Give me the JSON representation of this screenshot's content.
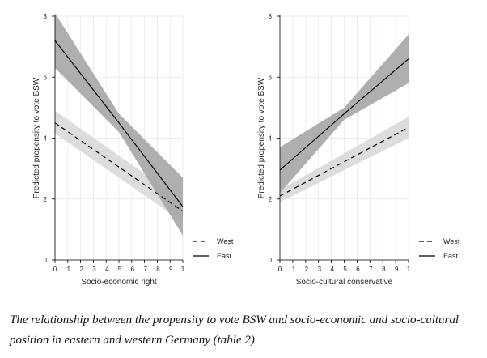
{
  "chart_data": [
    {
      "type": "line",
      "title": "",
      "xlabel": "Socio-economic right",
      "ylabel": "Predicted propensity to vote BSW",
      "xlim": [
        0,
        1
      ],
      "ylim": [
        0,
        8
      ],
      "x_ticks": [
        0,
        0.1,
        0.2,
        0.3,
        0.4,
        0.5,
        0.6,
        0.7,
        0.8,
        0.9,
        1
      ],
      "x_tick_labels": [
        "0",
        ".1",
        ".2",
        ".3",
        ".4",
        ".5",
        ".6",
        ".7",
        ".8",
        ".9",
        "1"
      ],
      "y_ticks": [
        0,
        2,
        4,
        6,
        8
      ],
      "y_tick_labels": [
        "0",
        "2",
        "4",
        "6",
        "8"
      ],
      "grid": true,
      "legend_position": "bottom-right",
      "series": [
        {
          "name": "West",
          "line_style": "dashed",
          "color": "#000000",
          "band_color": "#d9d9d9",
          "x": [
            0,
            1
          ],
          "values": [
            4.5,
            1.6
          ],
          "ci_lower": [
            4.15,
            1.25
          ],
          "ci_upper": [
            4.9,
            1.95
          ]
        },
        {
          "name": "East",
          "line_style": "solid",
          "color": "#000000",
          "band_color": "#a6a6a6",
          "x": [
            0,
            0.5,
            1
          ],
          "values": [
            7.2,
            4.5,
            1.75
          ],
          "ci_lower": [
            6.3,
            4.2,
            0.8
          ],
          "ci_upper": [
            8.1,
            4.8,
            2.7
          ]
        }
      ]
    },
    {
      "type": "line",
      "title": "",
      "xlabel": "Socio-cultural conservative",
      "ylabel": "Predicted propensity to vote BSW",
      "xlim": [
        0,
        1
      ],
      "ylim": [
        0,
        8
      ],
      "x_ticks": [
        0,
        0.1,
        0.2,
        0.3,
        0.4,
        0.5,
        0.6,
        0.7,
        0.8,
        0.9,
        1
      ],
      "x_tick_labels": [
        "0",
        ".1",
        ".2",
        ".3",
        ".4",
        ".5",
        ".6",
        ".7",
        ".8",
        ".9",
        "1"
      ],
      "y_ticks": [
        0,
        2,
        4,
        6,
        8
      ],
      "y_tick_labels": [
        "0",
        "2",
        "4",
        "6",
        "8"
      ],
      "grid": true,
      "legend_position": "bottom-right",
      "series": [
        {
          "name": "West",
          "line_style": "dashed",
          "color": "#000000",
          "band_color": "#d9d9d9",
          "x": [
            0,
            1
          ],
          "values": [
            2.1,
            4.35
          ],
          "ci_lower": [
            1.9,
            4.0
          ],
          "ci_upper": [
            2.3,
            4.7
          ]
        },
        {
          "name": "East",
          "line_style": "solid",
          "color": "#000000",
          "band_color": "#a6a6a6",
          "x": [
            0,
            0.5,
            1
          ],
          "values": [
            2.95,
            4.8,
            6.6
          ],
          "ci_lower": [
            2.2,
            4.6,
            5.8
          ],
          "ci_upper": [
            3.7,
            5.0,
            7.4
          ]
        }
      ]
    }
  ],
  "caption": "The relationship between the propensity to vote BSW and socio-economic and socio-cultural position in eastern and western Germany (table 2)"
}
